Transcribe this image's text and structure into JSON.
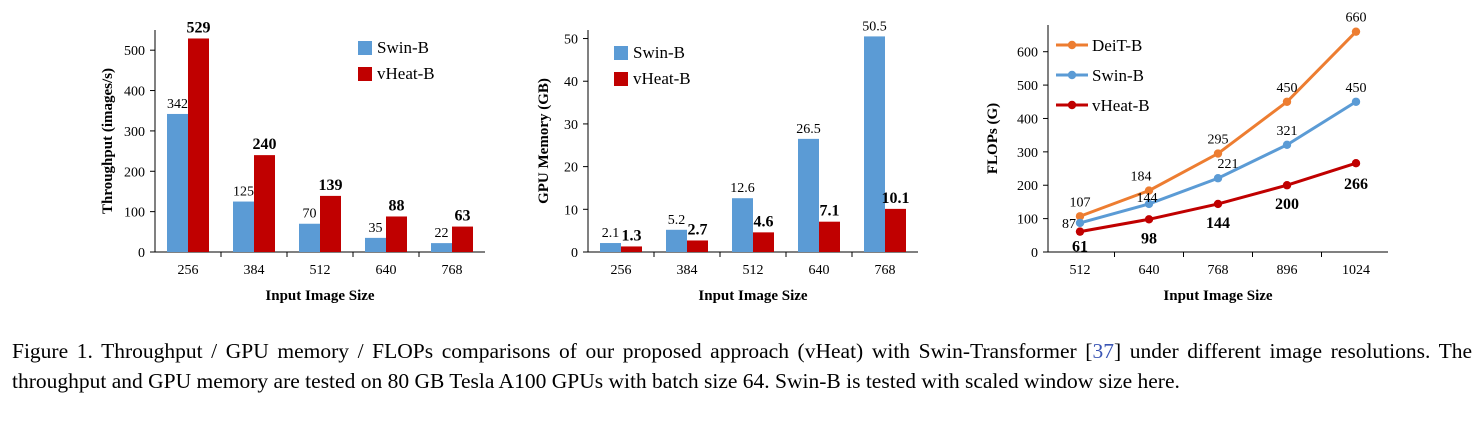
{
  "chart_data": [
    {
      "type": "bar",
      "xlabel": "Input Image Size",
      "ylabel": "Throughput (images/s)",
      "categories": [
        "256",
        "384",
        "512",
        "640",
        "768"
      ],
      "ylim": [
        0,
        550
      ],
      "yticks": [
        0,
        100,
        200,
        300,
        400,
        500
      ],
      "legend_position": "top-right",
      "series": [
        {
          "name": "Swin-B",
          "values": [
            342,
            125,
            70,
            35,
            22
          ],
          "labels": [
            "342",
            "125",
            "70",
            "35",
            "22"
          ],
          "color": "#5b9bd5",
          "bold_labels": false
        },
        {
          "name": "vHeat-B",
          "values": [
            529,
            240,
            139,
            88,
            63
          ],
          "labels": [
            "529",
            "240",
            "139",
            "88",
            "63"
          ],
          "color": "#c00000",
          "bold_labels": true
        }
      ]
    },
    {
      "type": "bar",
      "xlabel": "Input Image Size",
      "ylabel": "GPU Memory (GB)",
      "categories": [
        "256",
        "384",
        "512",
        "640",
        "768"
      ],
      "ylim": [
        0,
        52
      ],
      "yticks": [
        0,
        10,
        20,
        30,
        40,
        50
      ],
      "legend_position": "top-left",
      "series": [
        {
          "name": "Swin-B",
          "values": [
            2.1,
            5.2,
            12.6,
            26.5,
            50.5
          ],
          "labels": [
            "2.1",
            "5.2",
            "12.6",
            "26.5",
            "50.5"
          ],
          "color": "#5b9bd5",
          "bold_labels": false
        },
        {
          "name": "vHeat-B",
          "values": [
            1.3,
            2.7,
            4.6,
            7.1,
            10.1
          ],
          "labels": [
            "1.3",
            "2.7",
            "4.6",
            "7.1",
            "10.1"
          ],
          "color": "#c00000",
          "bold_labels": true
        }
      ]
    },
    {
      "type": "line",
      "xlabel": "Input Image Size",
      "ylabel": "FLOPs (G)",
      "categories": [
        "512",
        "640",
        "768",
        "896",
        "1024"
      ],
      "ylim": [
        0,
        680
      ],
      "yticks": [
        0,
        100,
        200,
        300,
        400,
        500,
        600
      ],
      "legend_position": "top-left",
      "series": [
        {
          "name": "DeiT-B",
          "values": [
            107,
            184,
            295,
            450,
            660
          ],
          "labels": [
            "107",
            "184",
            "295",
            "450",
            "660"
          ],
          "color": "#ed7d31",
          "bold_labels": false
        },
        {
          "name": "Swin-B",
          "values": [
            87,
            144,
            221,
            321,
            450
          ],
          "labels": [
            "87",
            "144",
            "221",
            "321",
            "450"
          ],
          "color": "#5b9bd5",
          "bold_labels": false
        },
        {
          "name": "vHeat-B",
          "values": [
            61,
            98,
            144,
            200,
            266
          ],
          "labels": [
            "61",
            "98",
            "144",
            "200",
            "266"
          ],
          "color": "#c00000",
          "bold_labels": true
        }
      ]
    }
  ],
  "caption": {
    "part1": "Figure 1. Throughput / GPU memory / FLOPs comparisons of our proposed approach (vHeat) with Swin-Transformer [",
    "ref": "37",
    "part2": "] under different image resolutions. The throughput and GPU memory are tested on 80 GB Tesla A100 GPUs with batch size 64. Swin-B is tested with scaled window size here."
  }
}
